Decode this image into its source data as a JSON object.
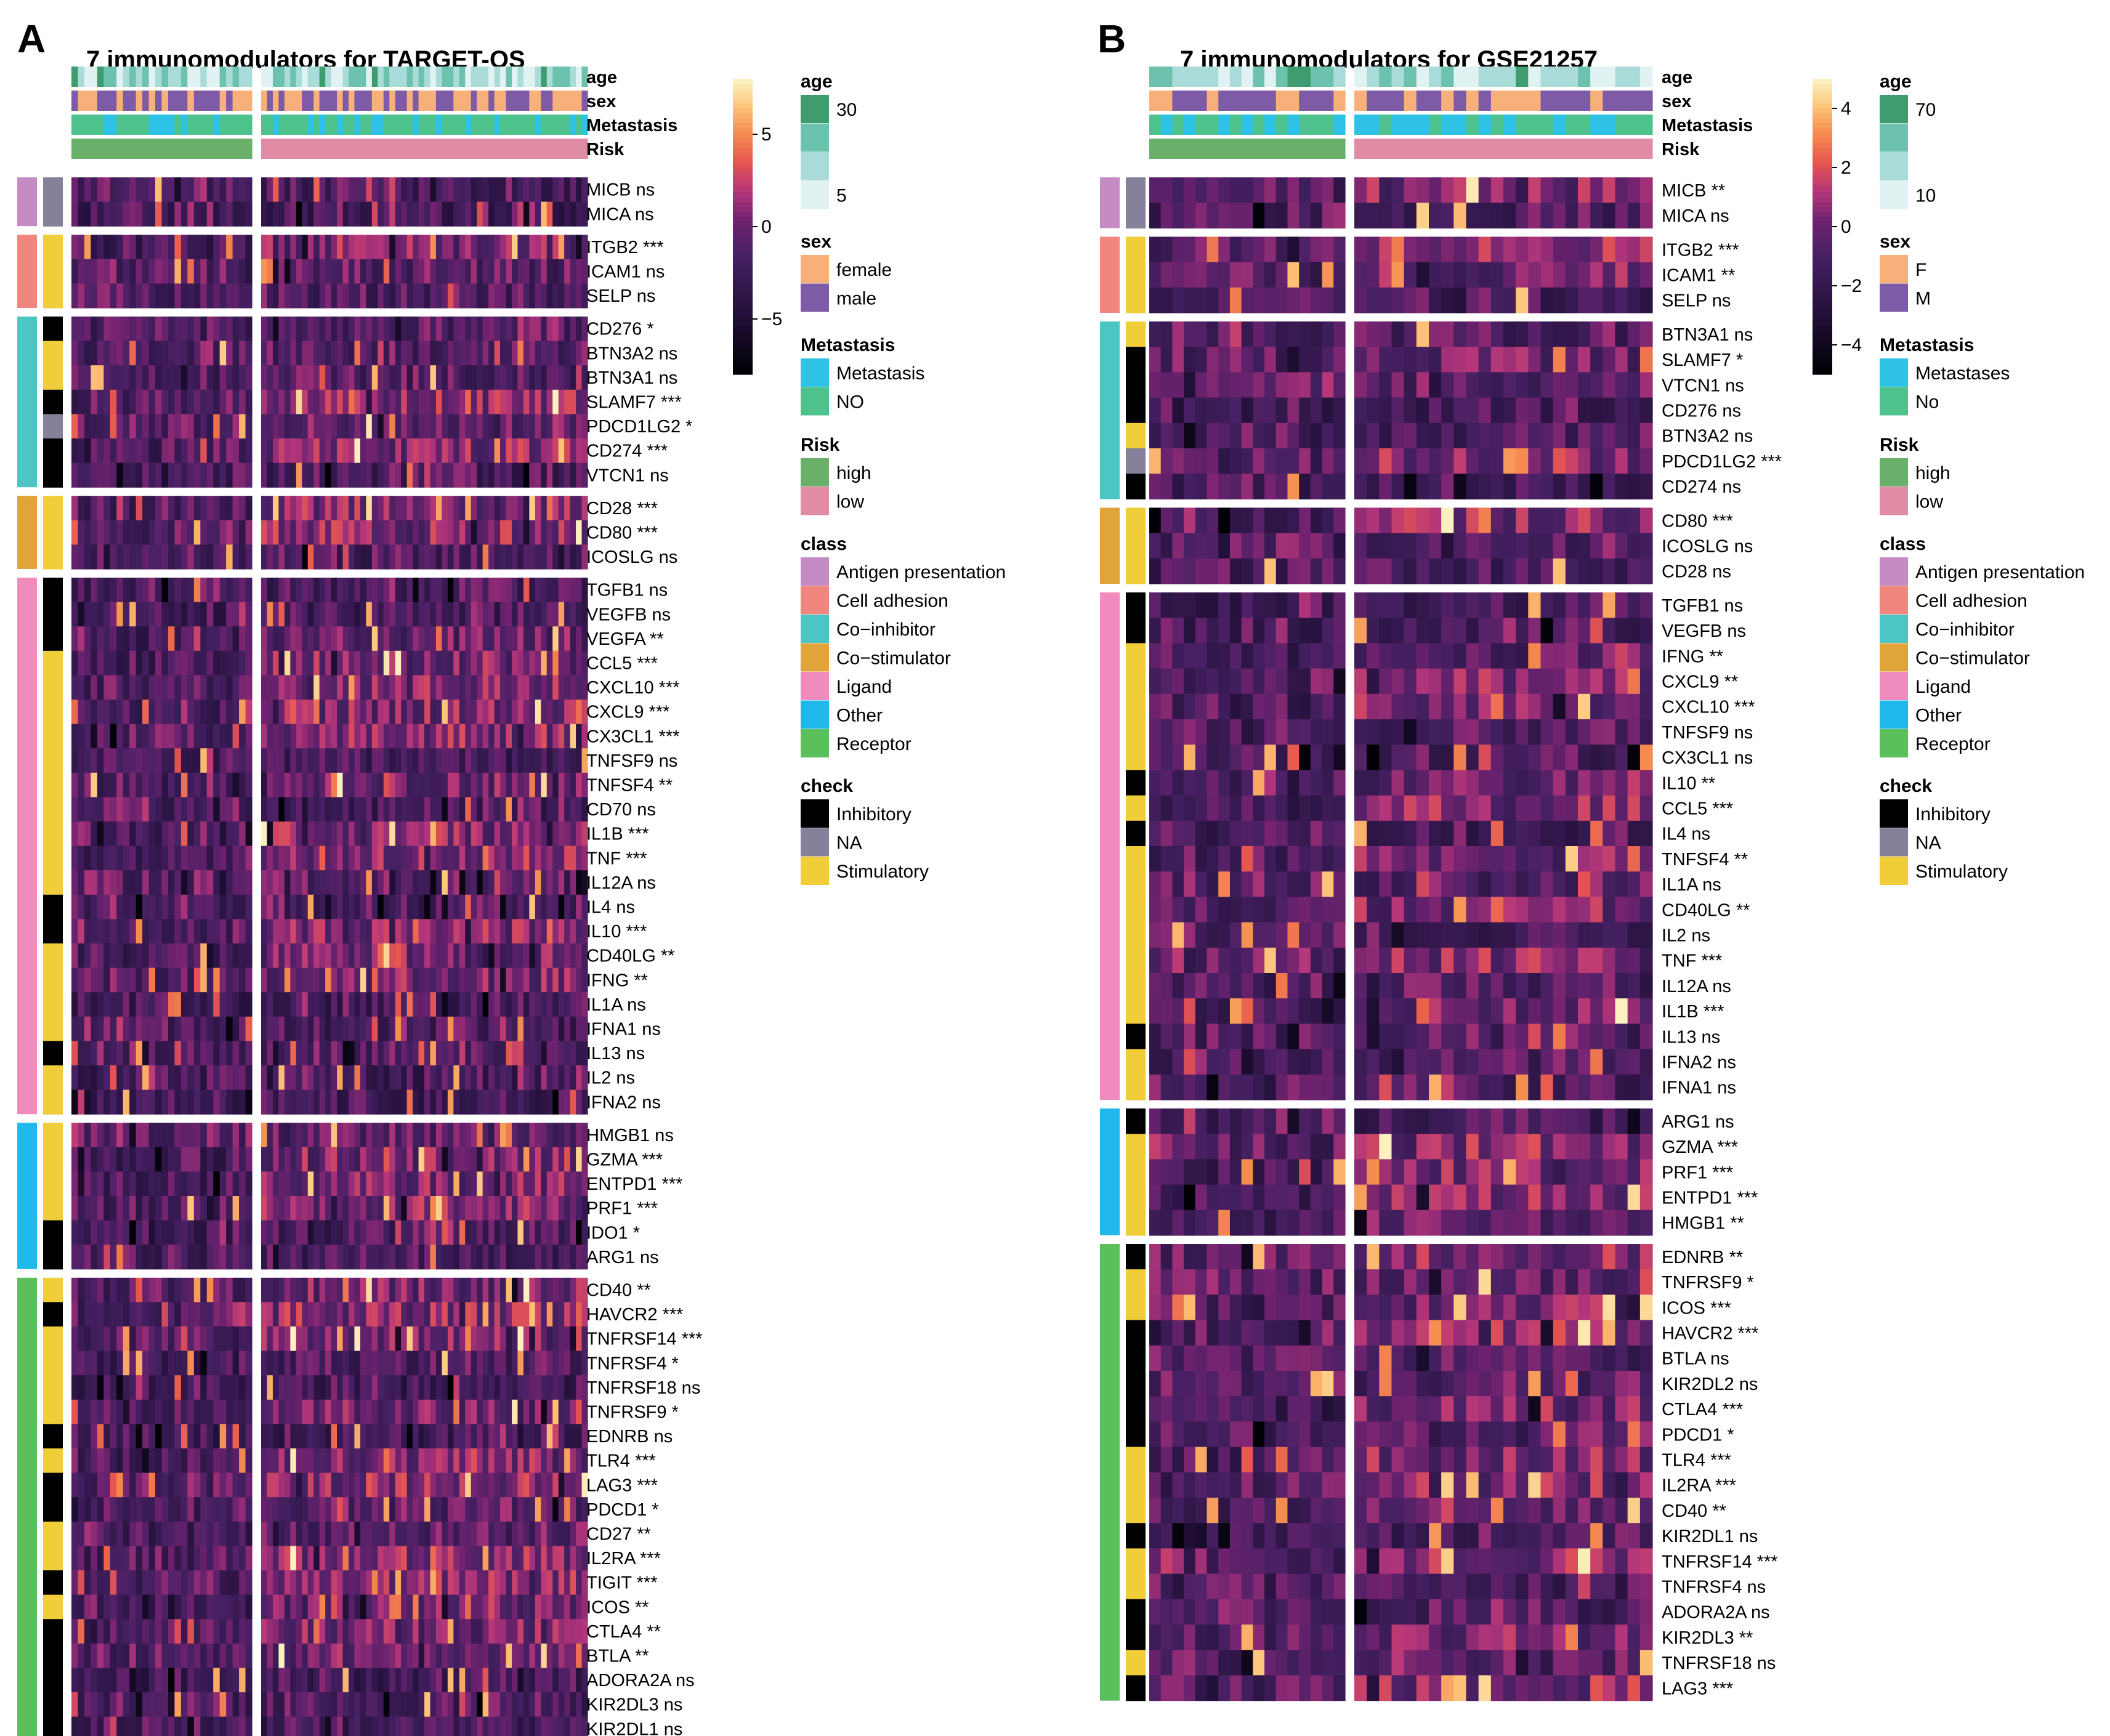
{
  "chart_data": [
    {
      "panel": "A",
      "type": "heatmap",
      "title": "7 immunomodulators for TARGET-OS",
      "groups": [
        {
          "name": "high",
          "n_samples": 28
        },
        {
          "name": "low",
          "n_samples": 56
        }
      ],
      "top_annotations": [
        "age",
        "sex",
        "Metastasis",
        "Risk"
      ],
      "colorbar": {
        "range": [
          -8,
          8
        ],
        "ticks": [
          5,
          0,
          -5
        ],
        "tick_labels": [
          "5",
          "0",
          "−5"
        ]
      },
      "blocks": [
        {
          "class": "Antigen presentation",
          "genes": [
            {
              "label": "MICB ns",
              "check": "NA"
            },
            {
              "label": "MICA ns",
              "check": "NA"
            }
          ]
        },
        {
          "class": "Cell adhesion",
          "genes": [
            {
              "label": "ITGB2 ***",
              "check": "Stimulatory"
            },
            {
              "label": "ICAM1 ns",
              "check": "Stimulatory"
            },
            {
              "label": "SELP ns",
              "check": "Stimulatory"
            }
          ]
        },
        {
          "class": "Co-inhibitor",
          "genes": [
            {
              "label": "CD276 *",
              "check": "Inhibitory"
            },
            {
              "label": "BTN3A2 ns",
              "check": "Stimulatory"
            },
            {
              "label": "BTN3A1 ns",
              "check": "Stimulatory"
            },
            {
              "label": "SLAMF7 ***",
              "check": "Inhibitory"
            },
            {
              "label": "PDCD1LG2 *",
              "check": "NA"
            },
            {
              "label": "CD274 ***",
              "check": "Inhibitory"
            },
            {
              "label": "VTCN1 ns",
              "check": "Inhibitory"
            }
          ]
        },
        {
          "class": "Co-stimulator",
          "genes": [
            {
              "label": "CD28 ***",
              "check": "Stimulatory"
            },
            {
              "label": "CD80 ***",
              "check": "Stimulatory"
            },
            {
              "label": "ICOSLG ns",
              "check": "Stimulatory"
            }
          ]
        },
        {
          "class": "Ligand",
          "genes": [
            {
              "label": "TGFB1 ns",
              "check": "Inhibitory"
            },
            {
              "label": "VEGFB ns",
              "check": "Inhibitory"
            },
            {
              "label": "VEGFA **",
              "check": "Inhibitory"
            },
            {
              "label": "CCL5 ***",
              "check": "Stimulatory"
            },
            {
              "label": "CXCL10 ***",
              "check": "Stimulatory"
            },
            {
              "label": "CXCL9 ***",
              "check": "Stimulatory"
            },
            {
              "label": "CX3CL1 ***",
              "check": "Stimulatory"
            },
            {
              "label": "TNFSF9 ns",
              "check": "Stimulatory"
            },
            {
              "label": "TNFSF4 **",
              "check": "Stimulatory"
            },
            {
              "label": "CD70 ns",
              "check": "Stimulatory"
            },
            {
              "label": "IL1B ***",
              "check": "Stimulatory"
            },
            {
              "label": "TNF ***",
              "check": "Stimulatory"
            },
            {
              "label": "IL12A ns",
              "check": "Stimulatory"
            },
            {
              "label": "IL4 ns",
              "check": "Inhibitory"
            },
            {
              "label": "IL10 ***",
              "check": "Inhibitory"
            },
            {
              "label": "CD40LG **",
              "check": "Stimulatory"
            },
            {
              "label": "IFNG **",
              "check": "Stimulatory"
            },
            {
              "label": "IL1A ns",
              "check": "Stimulatory"
            },
            {
              "label": "IFNA1 ns",
              "check": "Stimulatory"
            },
            {
              "label": "IL13 ns",
              "check": "Inhibitory"
            },
            {
              "label": "IL2 ns",
              "check": "Stimulatory"
            },
            {
              "label": "IFNA2 ns",
              "check": "Stimulatory"
            }
          ]
        },
        {
          "class": "Other",
          "genes": [
            {
              "label": "HMGB1 ns",
              "check": "Stimulatory"
            },
            {
              "label": "GZMA ***",
              "check": "Stimulatory"
            },
            {
              "label": "ENTPD1 ***",
              "check": "Stimulatory"
            },
            {
              "label": "PRF1 ***",
              "check": "Stimulatory"
            },
            {
              "label": "IDO1 *",
              "check": "Inhibitory"
            },
            {
              "label": "ARG1 ns",
              "check": "Inhibitory"
            }
          ]
        },
        {
          "class": "Receptor",
          "genes": [
            {
              "label": "CD40 **",
              "check": "Stimulatory"
            },
            {
              "label": "HAVCR2 ***",
              "check": "Inhibitory"
            },
            {
              "label": "TNFRSF14 ***",
              "check": "Stimulatory"
            },
            {
              "label": "TNFRSF4 *",
              "check": "Stimulatory"
            },
            {
              "label": "TNFRSF18 ns",
              "check": "Stimulatory"
            },
            {
              "label": "TNFRSF9 *",
              "check": "Stimulatory"
            },
            {
              "label": "EDNRB ns",
              "check": "Inhibitory"
            },
            {
              "label": "TLR4 ***",
              "check": "Stimulatory"
            },
            {
              "label": "LAG3 ***",
              "check": "Inhibitory"
            },
            {
              "label": "PDCD1 *",
              "check": "Inhibitory"
            },
            {
              "label": "CD27 **",
              "check": "Stimulatory"
            },
            {
              "label": "IL2RA ***",
              "check": "Stimulatory"
            },
            {
              "label": "TIGIT ***",
              "check": "Inhibitory"
            },
            {
              "label": "ICOS **",
              "check": "Stimulatory"
            },
            {
              "label": "CTLA4 **",
              "check": "Inhibitory"
            },
            {
              "label": "BTLA **",
              "check": "Inhibitory"
            },
            {
              "label": "ADORA2A ns",
              "check": "Inhibitory"
            },
            {
              "label": "KIR2DL3 ns",
              "check": "Inhibitory"
            },
            {
              "label": "KIR2DL1 ns",
              "check": "Inhibitory"
            }
          ]
        }
      ],
      "legends": [
        {
          "title": "age",
          "labels": [
            "30",
            "",
            "",
            "5"
          ],
          "colors": [
            "#3e9c6e",
            "#6cc2ad",
            "#a9dcd8",
            "#e1f2f3"
          ]
        },
        {
          "title": "sex",
          "labels": [
            "female",
            "male"
          ],
          "colors": [
            "#f7b07a",
            "#7e5ba6"
          ]
        },
        {
          "title": "Metastasis",
          "labels": [
            "Metastasis",
            "NO"
          ],
          "colors": [
            "#2ec2e6",
            "#4ec28c"
          ]
        },
        {
          "title": "Risk",
          "labels": [
            "high",
            "low"
          ],
          "colors": [
            "#6aaf6a",
            "#e08ca4"
          ]
        },
        {
          "title": "class",
          "labels": [
            "Antigen presentation",
            "Cell adhesion",
            "Co−inhibitor",
            "Co−stimulator",
            "Ligand",
            "Other",
            "Receptor"
          ],
          "colors": [
            "#c48bc4",
            "#f0867e",
            "#4ec5c5",
            "#e0a43a",
            "#f08cbd",
            "#20b8ea",
            "#5bbf5b"
          ]
        },
        {
          "title": "check",
          "labels": [
            "Inhibitory",
            "NA",
            "Stimulatory"
          ],
          "colors": [
            "#000000",
            "#85819a",
            "#f2cd3a"
          ]
        }
      ]
    },
    {
      "panel": "B",
      "type": "heatmap",
      "title": "7 immunomodulators for GSE21257",
      "groups": [
        {
          "name": "high",
          "n_samples": 17
        },
        {
          "name": "low",
          "n_samples": 24
        }
      ],
      "top_annotations": [
        "age",
        "sex",
        "Metastasis",
        "Risk"
      ],
      "colorbar": {
        "range": [
          -5,
          5
        ],
        "ticks": [
          4,
          2,
          0,
          -2,
          -4
        ],
        "tick_labels": [
          "4",
          "2",
          "0",
          "−2",
          "−4"
        ]
      },
      "blocks": [
        {
          "class": "Antigen presentation",
          "genes": [
            {
              "label": "MICB **",
              "check": "NA"
            },
            {
              "label": "MICA ns",
              "check": "NA"
            }
          ]
        },
        {
          "class": "Cell adhesion",
          "genes": [
            {
              "label": "ITGB2 ***",
              "check": "Stimulatory"
            },
            {
              "label": "ICAM1 **",
              "check": "Stimulatory"
            },
            {
              "label": "SELP ns",
              "check": "Stimulatory"
            }
          ]
        },
        {
          "class": "Co-inhibitor",
          "genes": [
            {
              "label": "BTN3A1 ns",
              "check": "Stimulatory"
            },
            {
              "label": "SLAMF7 *",
              "check": "Inhibitory"
            },
            {
              "label": "VTCN1 ns",
              "check": "Inhibitory"
            },
            {
              "label": "CD276 ns",
              "check": "Inhibitory"
            },
            {
              "label": "BTN3A2 ns",
              "check": "Stimulatory"
            },
            {
              "label": "PDCD1LG2 ***",
              "check": "NA"
            },
            {
              "label": "CD274 ns",
              "check": "Inhibitory"
            }
          ]
        },
        {
          "class": "Co-stimulator",
          "genes": [
            {
              "label": "CD80 ***",
              "check": "Stimulatory"
            },
            {
              "label": "ICOSLG ns",
              "check": "Stimulatory"
            },
            {
              "label": "CD28 ns",
              "check": "Stimulatory"
            }
          ]
        },
        {
          "class": "Ligand",
          "genes": [
            {
              "label": "TGFB1 ns",
              "check": "Inhibitory"
            },
            {
              "label": "VEGFB ns",
              "check": "Inhibitory"
            },
            {
              "label": "IFNG **",
              "check": "Stimulatory"
            },
            {
              "label": "CXCL9 **",
              "check": "Stimulatory"
            },
            {
              "label": "CXCL10 ***",
              "check": "Stimulatory"
            },
            {
              "label": "TNFSF9 ns",
              "check": "Stimulatory"
            },
            {
              "label": "CX3CL1 ns",
              "check": "Stimulatory"
            },
            {
              "label": "IL10 **",
              "check": "Inhibitory"
            },
            {
              "label": "CCL5 ***",
              "check": "Stimulatory"
            },
            {
              "label": "IL4 ns",
              "check": "Inhibitory"
            },
            {
              "label": "TNFSF4 **",
              "check": "Stimulatory"
            },
            {
              "label": "IL1A ns",
              "check": "Stimulatory"
            },
            {
              "label": "CD40LG **",
              "check": "Stimulatory"
            },
            {
              "label": "IL2 ns",
              "check": "Stimulatory"
            },
            {
              "label": "TNF ***",
              "check": "Stimulatory"
            },
            {
              "label": "IL12A ns",
              "check": "Stimulatory"
            },
            {
              "label": "IL1B ***",
              "check": "Stimulatory"
            },
            {
              "label": "IL13 ns",
              "check": "Inhibitory"
            },
            {
              "label": "IFNA2 ns",
              "check": "Stimulatory"
            },
            {
              "label": "IFNA1 ns",
              "check": "Stimulatory"
            }
          ]
        },
        {
          "class": "Other",
          "genes": [
            {
              "label": "ARG1 ns",
              "check": "Inhibitory"
            },
            {
              "label": "GZMA ***",
              "check": "Stimulatory"
            },
            {
              "label": "PRF1 ***",
              "check": "Stimulatory"
            },
            {
              "label": "ENTPD1 ***",
              "check": "Stimulatory"
            },
            {
              "label": "HMGB1 **",
              "check": "Stimulatory"
            }
          ]
        },
        {
          "class": "Receptor",
          "genes": [
            {
              "label": "EDNRB **",
              "check": "Inhibitory"
            },
            {
              "label": "TNFRSF9 *",
              "check": "Stimulatory"
            },
            {
              "label": "ICOS ***",
              "check": "Stimulatory"
            },
            {
              "label": "HAVCR2 ***",
              "check": "Inhibitory"
            },
            {
              "label": "BTLA ns",
              "check": "Inhibitory"
            },
            {
              "label": "KIR2DL2 ns",
              "check": "Inhibitory"
            },
            {
              "label": "CTLA4 ***",
              "check": "Inhibitory"
            },
            {
              "label": "PDCD1 *",
              "check": "Inhibitory"
            },
            {
              "label": "TLR4 ***",
              "check": "Stimulatory"
            },
            {
              "label": "IL2RA ***",
              "check": "Stimulatory"
            },
            {
              "label": "CD40 **",
              "check": "Stimulatory"
            },
            {
              "label": "KIR2DL1 ns",
              "check": "Inhibitory"
            },
            {
              "label": "TNFRSF14 ***",
              "check": "Stimulatory"
            },
            {
              "label": "TNFRSF4 ns",
              "check": "Stimulatory"
            },
            {
              "label": "ADORA2A ns",
              "check": "Inhibitory"
            },
            {
              "label": "KIR2DL3 **",
              "check": "Inhibitory"
            },
            {
              "label": "TNFRSF18 ns",
              "check": "Stimulatory"
            },
            {
              "label": "LAG3 ***",
              "check": "Inhibitory"
            }
          ]
        }
      ],
      "legends": [
        {
          "title": "age",
          "labels": [
            "70",
            "",
            "",
            "10"
          ],
          "colors": [
            "#3e9c6e",
            "#6cc2ad",
            "#a9dcd8",
            "#e1f2f3"
          ]
        },
        {
          "title": "sex",
          "labels": [
            "F",
            "M"
          ],
          "colors": [
            "#f7b07a",
            "#7e5ba6"
          ]
        },
        {
          "title": "Metastasis",
          "labels": [
            "Metastases",
            "No"
          ],
          "colors": [
            "#2ec2e6",
            "#4ec28c"
          ]
        },
        {
          "title": "Risk",
          "labels": [
            "high",
            "low"
          ],
          "colors": [
            "#6aaf6a",
            "#e08ca4"
          ]
        },
        {
          "title": "class",
          "labels": [
            "Antigen presentation",
            "Cell adhesion",
            "Co−inhibitor",
            "Co−stimulator",
            "Ligand",
            "Other",
            "Receptor"
          ],
          "colors": [
            "#c48bc4",
            "#f0867e",
            "#4ec5c5",
            "#e0a43a",
            "#f08cbd",
            "#20b8ea",
            "#5bbf5b"
          ]
        },
        {
          "title": "check",
          "labels": [
            "Inhibitory",
            "NA",
            "Stimulatory"
          ],
          "colors": [
            "#000000",
            "#85819a",
            "#f2cd3a"
          ]
        }
      ]
    }
  ],
  "colors": {
    "heat_low": "#000004",
    "heat_mid": "#3b1a52",
    "heat_high": "#f8e9a8",
    "class_colors": {
      "Antigen presentation": "#c48bc4",
      "Cell adhesion": "#f0867e",
      "Co-inhibitor": "#4ec5c5",
      "Co-stimulator": "#e0a43a",
      "Ligand": "#f08cbd",
      "Other": "#20b8ea",
      "Receptor": "#5bbf5b"
    },
    "check_colors": {
      "Inhibitory": "#000000",
      "NA": "#85819a",
      "Stimulatory": "#f2cd3a"
    }
  }
}
